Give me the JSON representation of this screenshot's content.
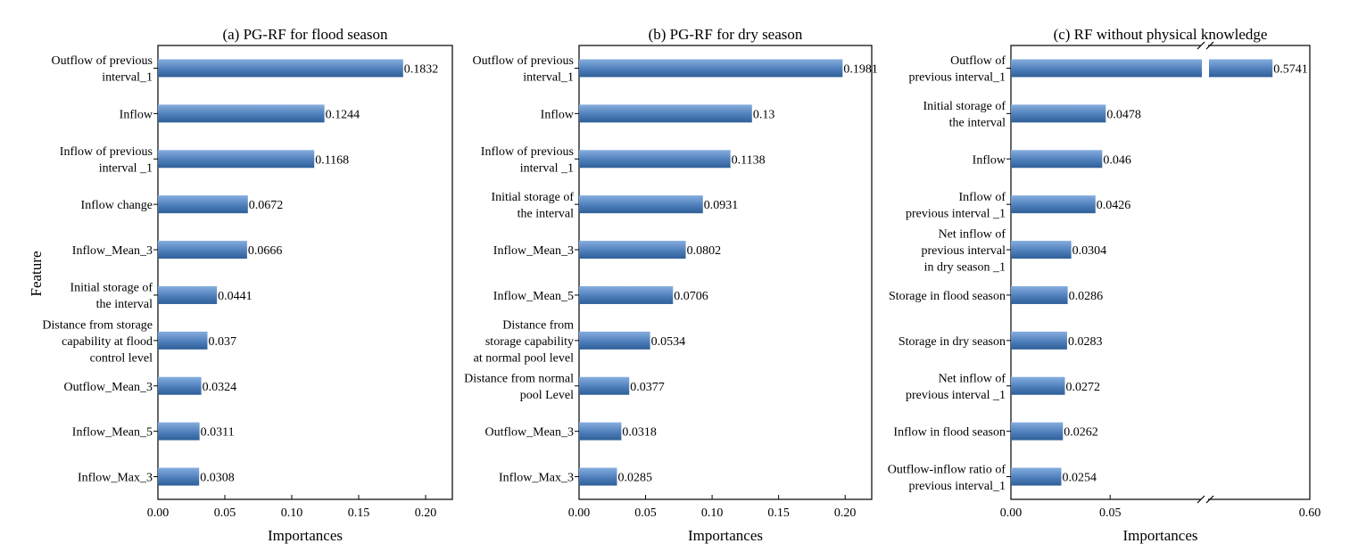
{
  "figure": {
    "ylabel": "Feature",
    "bar_color": "#4f7fbb",
    "bar_color_dark": "#2f5f98",
    "bar_color_light": "#86aede",
    "axis_color": "#000000"
  },
  "chart_data": [
    {
      "type": "bar",
      "orientation": "horizontal",
      "title": "(a) PG-RF for flood season",
      "xlabel": "Importances",
      "xlim": [
        0,
        0.22
      ],
      "xticks": [
        "0.00",
        "0.05",
        "0.10",
        "0.15",
        "0.20"
      ],
      "categories": [
        [
          "Outflow of previous",
          "interval_1"
        ],
        [
          "Inflow"
        ],
        [
          "Inflow of previous",
          "interval _1"
        ],
        [
          "Inflow change"
        ],
        [
          "Inflow_Mean_3"
        ],
        [
          "Initial storage of",
          "the interval"
        ],
        [
          "Distance from storage",
          "capability at flood",
          "control level"
        ],
        [
          "Outflow_Mean_3"
        ],
        [
          "Inflow_Mean_5"
        ],
        [
          "Inflow_Max_3"
        ]
      ],
      "values": [
        0.1832,
        0.1244,
        0.1168,
        0.0672,
        0.0666,
        0.0441,
        0.037,
        0.0324,
        0.0311,
        0.0308
      ],
      "value_labels": [
        "0.1832",
        "0.1244",
        "0.1168",
        "0.0672",
        "0.0666",
        "0.0441",
        "0.037",
        "0.0324",
        "0.0311",
        "0.0308"
      ]
    },
    {
      "type": "bar",
      "orientation": "horizontal",
      "title": "(b) PG-RF for dry season",
      "xlabel": "Importances",
      "xlim": [
        0,
        0.22
      ],
      "xticks": [
        "0.00",
        "0.05",
        "0.10",
        "0.15",
        "0.20"
      ],
      "categories": [
        [
          "Outflow of previous",
          "interval_1"
        ],
        [
          "Inflow"
        ],
        [
          "Inflow of previous",
          "interval _1"
        ],
        [
          "Initial storage of",
          "the interval"
        ],
        [
          "Inflow_Mean_3"
        ],
        [
          "Inflow_Mean_5"
        ],
        [
          "Distance from",
          "storage capability",
          "at normal pool level"
        ],
        [
          "Distance from normal",
          "pool Level"
        ],
        [
          "Outflow_Mean_3"
        ],
        [
          "Inflow_Max_3"
        ]
      ],
      "values": [
        0.1981,
        0.13,
        0.1138,
        0.0931,
        0.0802,
        0.0706,
        0.0534,
        0.0377,
        0.0318,
        0.0285
      ],
      "value_labels": [
        "0.1981",
        "0.13",
        "0.1138",
        "0.0931",
        "0.0802",
        "0.0706",
        "0.0534",
        "0.0377",
        "0.0318",
        "0.0285"
      ]
    },
    {
      "type": "bar",
      "orientation": "horizontal",
      "title": "(c) RF without physical knowledge",
      "xlabel": "Importances",
      "broken_axis": {
        "left_range": [
          0,
          0.098
        ],
        "right_range": [
          0.53,
          0.6
        ]
      },
      "xticks": [
        "0.00",
        "0.05",
        "0.60"
      ],
      "xtick_values": [
        0,
        0.05,
        0.6
      ],
      "categories": [
        [
          "Outflow of",
          "previous interval_1"
        ],
        [
          "Initial storage of",
          "the interval"
        ],
        [
          "Inflow"
        ],
        [
          "Inflow of",
          "previous interval _1"
        ],
        [
          "Net inflow of",
          "previous interval",
          "in dry season _1"
        ],
        [
          "Storage in flood season"
        ],
        [
          "Storage in dry season"
        ],
        [
          "Net inflow of",
          "previous interval _1"
        ],
        [
          "Inflow in flood season"
        ],
        [
          "Outflow-inflow ratio of",
          "previous interval_1"
        ]
      ],
      "values": [
        0.5741,
        0.0478,
        0.046,
        0.0426,
        0.0304,
        0.0286,
        0.0283,
        0.0272,
        0.0262,
        0.0254
      ],
      "value_labels": [
        "0.5741",
        "0.0478",
        "0.046",
        "0.0426",
        "0.0304",
        "0.0286",
        "0.0283",
        "0.0272",
        "0.0262",
        "0.0254"
      ]
    }
  ]
}
